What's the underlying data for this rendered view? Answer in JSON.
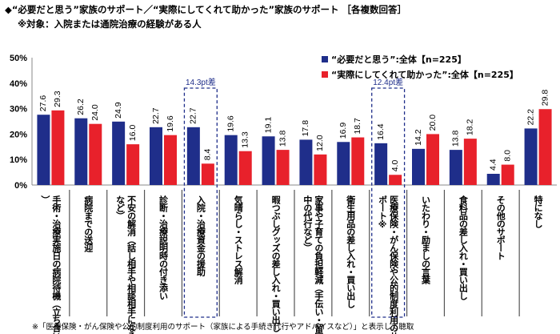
{
  "title": "◆“必要だと思う”家族のサポート／“実際にしてくれて助かった”家族のサポート ［各複数回答］",
  "subtitle": "※対象：入院または通院治療の経験がある人",
  "footnote": "※「医療保険・がん保険や公的制度利用のサポート（家族による手続き代行やアドバイスなど）」と表示して聴取",
  "chart_data": {
    "type": "bar",
    "categories": [
      "手術・治療実施日の病院待機（立ち合い）",
      "病院までの送迎",
      "不安の解消（話し相手や相談相手になるなど）",
      "診断・治療説明時の付き添い",
      "入院・治療資金の援助",
      "気晴らし・ストレス解消",
      "暇つぶしグッズの差し入れ・買い出し",
      "家事や子育ての負担軽減（手伝い・留守中の代行など）",
      "衛生用品の差し入れ・買い出し",
      "医療保険・がん保険や公的制度利用のサポート※",
      "いたわり・励ましの言葉",
      "食料品の差し入れ・買い出し",
      "その他のサポート",
      "特になし"
    ],
    "series": [
      {
        "name": "“必要だと思う”:全体【n=225】",
        "color": "#1f2e8a",
        "values": [
          27.6,
          26.2,
          24.9,
          22.7,
          22.7,
          19.6,
          19.1,
          17.8,
          16.9,
          16.4,
          14.2,
          13.8,
          4.4,
          22.2
        ]
      },
      {
        "name": "“実際にしてくれて助かった”:全体【n=225】",
        "color": "#e8212b",
        "values": [
          29.3,
          24.0,
          16.0,
          19.6,
          8.4,
          13.3,
          13.8,
          12.0,
          18.7,
          4.0,
          20.0,
          18.2,
          8.0,
          29.8
        ]
      }
    ],
    "yticks": [
      "0%",
      "10%",
      "20%",
      "30%",
      "40%",
      "50%"
    ],
    "ylim": [
      0,
      50
    ],
    "annotations": [
      {
        "category_index": 4,
        "text": "14.3pt差"
      },
      {
        "category_index": 9,
        "text": "12.4pt差"
      }
    ],
    "legend": "top-right",
    "grid": false
  }
}
